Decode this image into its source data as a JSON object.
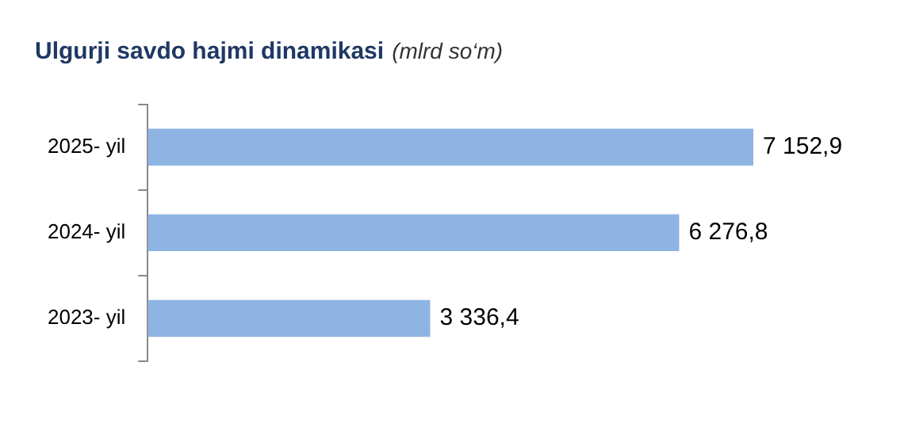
{
  "chart_data": {
    "type": "bar",
    "orientation": "horizontal",
    "title": "Ulgurji savdo hajmi dinamikasi",
    "subtitle": "(mlrd so‘m)",
    "categories": [
      "2025- yil",
      "2024- yil",
      "2023- yil"
    ],
    "values": [
      7152.9,
      6276.8,
      3336.4
    ],
    "value_labels": [
      "7 152,9",
      "6 276,8",
      "3 336,4"
    ],
    "color": "#8eb4e3"
  }
}
